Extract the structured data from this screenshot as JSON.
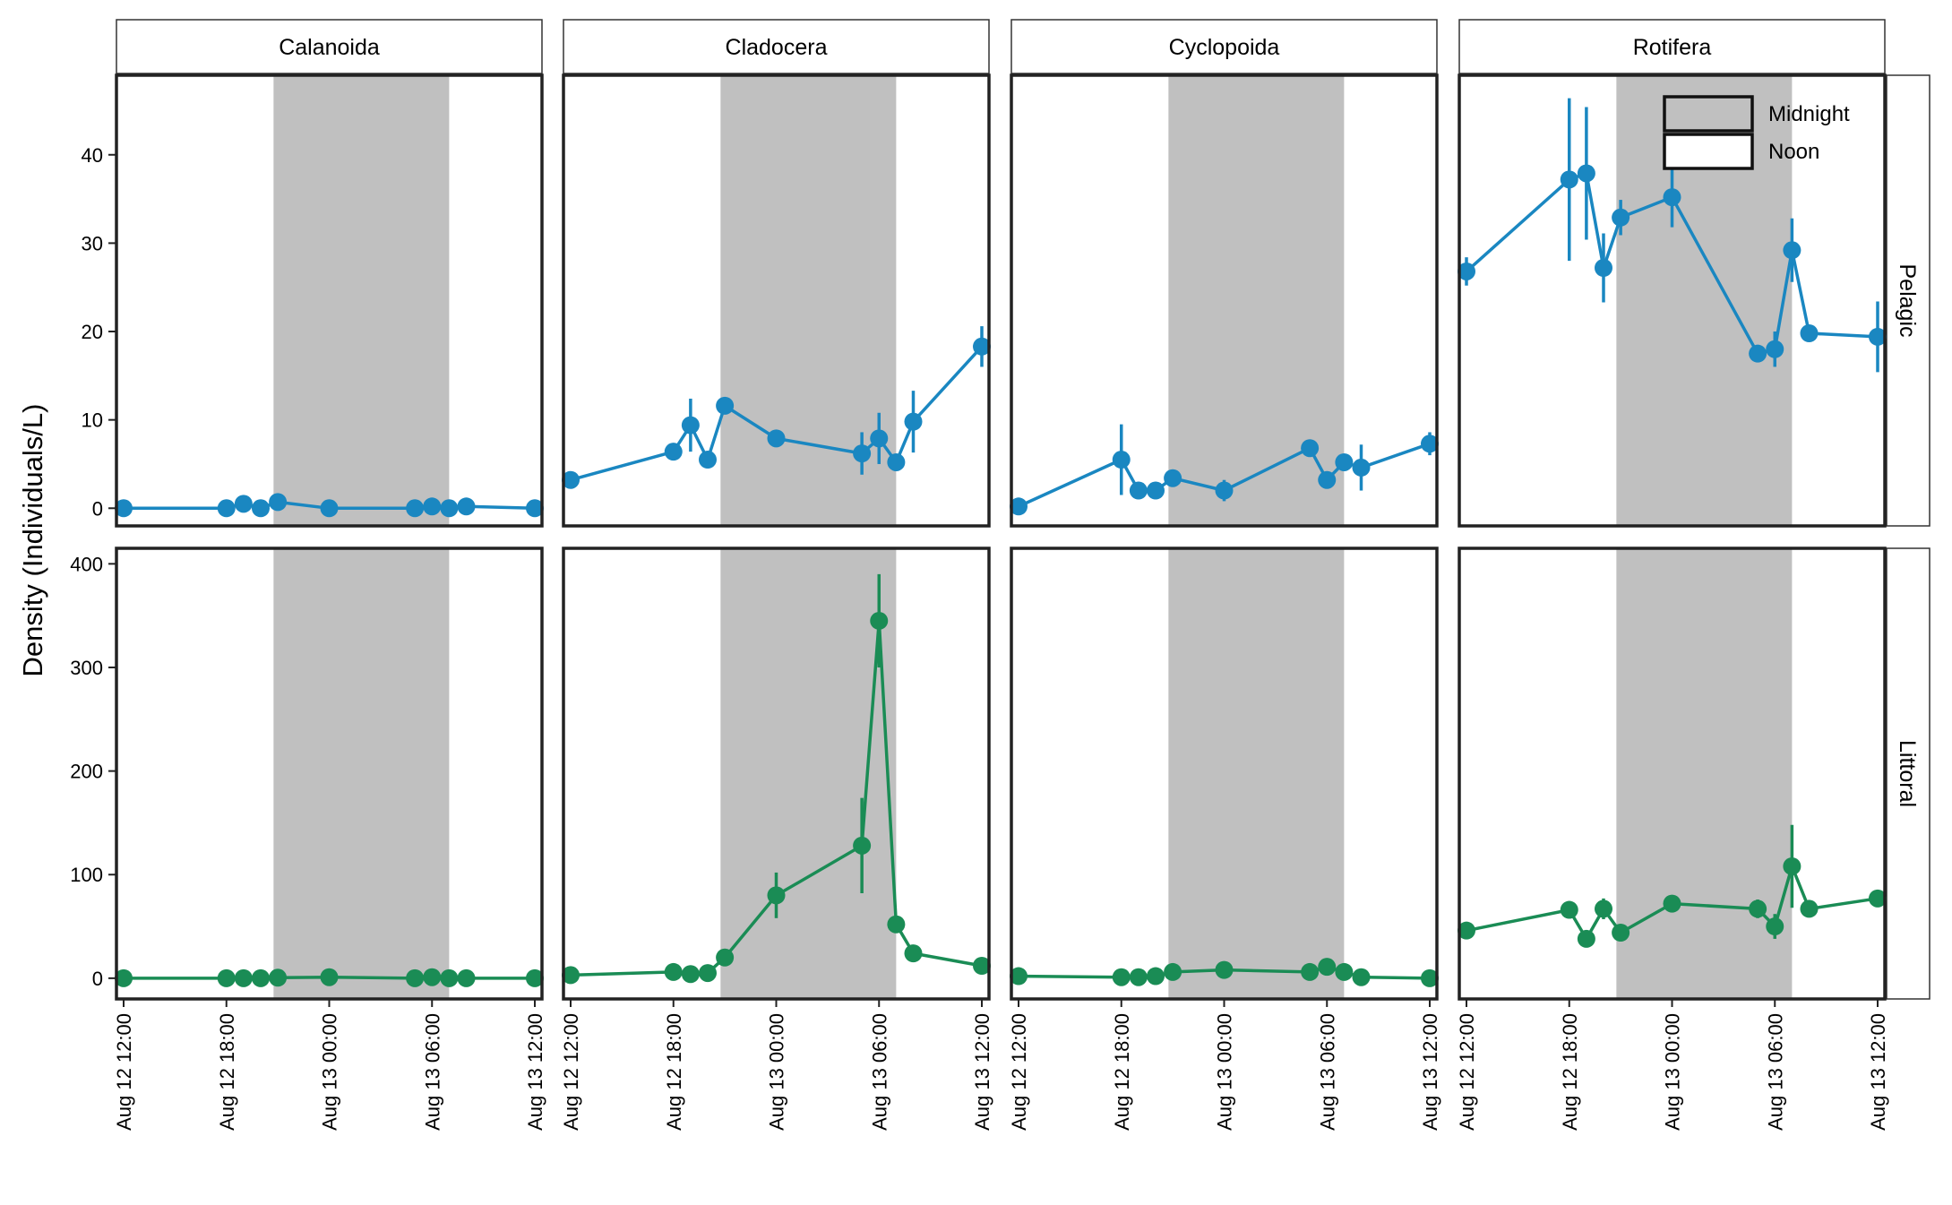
{
  "chart_data": {
    "type": "line",
    "ylabel": "Density (Individuals/L)",
    "xlabel": "",
    "x_tick_labels": [
      "Aug 12 12:00",
      "Aug 12 18:00",
      "Aug 13 00:00",
      "Aug 13 06:00",
      "Aug 13 12:00"
    ],
    "x_range_hours": [
      0,
      24
    ],
    "night_shading_hours": [
      8.75,
      19
    ],
    "legend": {
      "placement": "top-right",
      "items": [
        {
          "label": "Midnight",
          "fill": "#c0c0c0"
        },
        {
          "label": "Noon",
          "fill": "#ffffff"
        }
      ]
    },
    "facet_columns": [
      "Calanoida",
      "Cladocera",
      "Cyclopoida",
      "Rotifera"
    ],
    "facet_rows": [
      {
        "label": "Pelagic",
        "color": "#1a87c1",
        "ylim": [
          -2,
          49
        ],
        "yticks": [
          0,
          10,
          20,
          30,
          40
        ]
      },
      {
        "label": "Littoral",
        "color": "#1a8c55",
        "ylim": [
          -20,
          415
        ],
        "yticks": [
          0,
          100,
          200,
          300,
          400
        ]
      }
    ],
    "panels": [
      {
        "row": "Pelagic",
        "col": "Calanoida",
        "points": [
          {
            "t": 0,
            "y": 0,
            "lo": 0,
            "hi": 0
          },
          {
            "t": 6,
            "y": 0,
            "lo": 0,
            "hi": 0
          },
          {
            "t": 7,
            "y": 0.5,
            "lo": 0.3,
            "hi": 0.7
          },
          {
            "t": 8,
            "y": 0,
            "lo": 0,
            "hi": 0
          },
          {
            "t": 9,
            "y": 0.7,
            "lo": 0.5,
            "hi": 0.9
          },
          {
            "t": 12,
            "y": 0,
            "lo": 0,
            "hi": 0
          },
          {
            "t": 17,
            "y": 0,
            "lo": 0,
            "hi": 0
          },
          {
            "t": 18,
            "y": 0.2,
            "lo": 0,
            "hi": 0.4
          },
          {
            "t": 19,
            "y": 0,
            "lo": 0,
            "hi": 0
          },
          {
            "t": 20,
            "y": 0.2,
            "lo": 0,
            "hi": 0.4
          },
          {
            "t": 24,
            "y": 0,
            "lo": 0,
            "hi": 0
          }
        ]
      },
      {
        "row": "Pelagic",
        "col": "Cladocera",
        "points": [
          {
            "t": 0,
            "y": 3.2,
            "lo": 2.9,
            "hi": 3.5
          },
          {
            "t": 6,
            "y": 6.4,
            "lo": 5.9,
            "hi": 6.9
          },
          {
            "t": 7,
            "y": 9.4,
            "lo": 6.4,
            "hi": 12.4
          },
          {
            "t": 8,
            "y": 5.5,
            "lo": 5.1,
            "hi": 5.9
          },
          {
            "t": 9,
            "y": 11.6,
            "lo": 11.1,
            "hi": 12.1
          },
          {
            "t": 12,
            "y": 7.9,
            "lo": 7.4,
            "hi": 8.4
          },
          {
            "t": 17,
            "y": 6.2,
            "lo": 3.8,
            "hi": 8.6
          },
          {
            "t": 18,
            "y": 7.9,
            "lo": 5.0,
            "hi": 10.8
          },
          {
            "t": 19,
            "y": 5.2,
            "lo": 4.7,
            "hi": 5.7
          },
          {
            "t": 20,
            "y": 9.8,
            "lo": 6.3,
            "hi": 13.3
          },
          {
            "t": 24,
            "y": 18.3,
            "lo": 16.0,
            "hi": 20.6
          }
        ]
      },
      {
        "row": "Pelagic",
        "col": "Cyclopoida",
        "points": [
          {
            "t": 0,
            "y": 0.2,
            "lo": 0,
            "hi": 0.5
          },
          {
            "t": 6,
            "y": 5.5,
            "lo": 1.5,
            "hi": 9.5
          },
          {
            "t": 7,
            "y": 2.0,
            "lo": 1.6,
            "hi": 2.4
          },
          {
            "t": 8,
            "y": 2.0,
            "lo": 1.6,
            "hi": 2.4
          },
          {
            "t": 9,
            "y": 3.4,
            "lo": 3.0,
            "hi": 3.8
          },
          {
            "t": 12,
            "y": 2.0,
            "lo": 0.8,
            "hi": 3.2
          },
          {
            "t": 17,
            "y": 6.8,
            "lo": 6.3,
            "hi": 7.3
          },
          {
            "t": 18,
            "y": 3.2,
            "lo": 2.8,
            "hi": 3.6
          },
          {
            "t": 19,
            "y": 5.2,
            "lo": 4.8,
            "hi": 5.6
          },
          {
            "t": 20,
            "y": 4.6,
            "lo": 2.0,
            "hi": 7.2
          },
          {
            "t": 24,
            "y": 7.3,
            "lo": 6.0,
            "hi": 8.6
          }
        ]
      },
      {
        "row": "Pelagic",
        "col": "Rotifera",
        "points": [
          {
            "t": 0,
            "y": 26.8,
            "lo": 25.2,
            "hi": 28.4
          },
          {
            "t": 6,
            "y": 37.2,
            "lo": 28.0,
            "hi": 46.4
          },
          {
            "t": 7,
            "y": 37.9,
            "lo": 30.4,
            "hi": 45.4
          },
          {
            "t": 8,
            "y": 27.2,
            "lo": 23.3,
            "hi": 31.1
          },
          {
            "t": 9,
            "y": 32.9,
            "lo": 30.9,
            "hi": 34.9
          },
          {
            "t": 12,
            "y": 35.2,
            "lo": 31.8,
            "hi": 38.6
          },
          {
            "t": 17,
            "y": 17.5,
            "lo": 16.7,
            "hi": 18.3
          },
          {
            "t": 18,
            "y": 18.0,
            "lo": 16.0,
            "hi": 20.0
          },
          {
            "t": 19,
            "y": 29.2,
            "lo": 25.6,
            "hi": 32.8
          },
          {
            "t": 20,
            "y": 19.8,
            "lo": 19.3,
            "hi": 20.3
          },
          {
            "t": 24,
            "y": 19.4,
            "lo": 15.4,
            "hi": 23.4
          }
        ]
      },
      {
        "row": "Littoral",
        "col": "Calanoida",
        "points": [
          {
            "t": 0,
            "y": 0,
            "lo": 0,
            "hi": 0
          },
          {
            "t": 6,
            "y": 0,
            "lo": 0,
            "hi": 0
          },
          {
            "t": 7,
            "y": 0,
            "lo": 0,
            "hi": 0
          },
          {
            "t": 8,
            "y": 0,
            "lo": 0,
            "hi": 0
          },
          {
            "t": 9,
            "y": 0.5,
            "lo": 0,
            "hi": 1
          },
          {
            "t": 12,
            "y": 1.0,
            "lo": 0,
            "hi": 2
          },
          {
            "t": 17,
            "y": 0,
            "lo": 0,
            "hi": 0
          },
          {
            "t": 18,
            "y": 1.0,
            "lo": 0,
            "hi": 2
          },
          {
            "t": 19,
            "y": 0,
            "lo": 0,
            "hi": 0
          },
          {
            "t": 20,
            "y": 0,
            "lo": 0,
            "hi": 0
          },
          {
            "t": 24,
            "y": 0,
            "lo": 0,
            "hi": 0
          }
        ]
      },
      {
        "row": "Littoral",
        "col": "Cladocera",
        "points": [
          {
            "t": 0,
            "y": 3,
            "lo": 2,
            "hi": 4
          },
          {
            "t": 6,
            "y": 6,
            "lo": 5,
            "hi": 7
          },
          {
            "t": 7,
            "y": 4,
            "lo": 3,
            "hi": 5
          },
          {
            "t": 8,
            "y": 5,
            "lo": 4,
            "hi": 6
          },
          {
            "t": 9,
            "y": 20,
            "lo": 18,
            "hi": 22
          },
          {
            "t": 12,
            "y": 80,
            "lo": 58,
            "hi": 102
          },
          {
            "t": 17,
            "y": 128,
            "lo": 82,
            "hi": 174
          },
          {
            "t": 18,
            "y": 345,
            "lo": 300,
            "hi": 390
          },
          {
            "t": 19,
            "y": 52,
            "lo": 48,
            "hi": 56
          },
          {
            "t": 20,
            "y": 24,
            "lo": 22,
            "hi": 26
          },
          {
            "t": 24,
            "y": 12,
            "lo": 10,
            "hi": 14
          }
        ]
      },
      {
        "row": "Littoral",
        "col": "Cyclopoida",
        "points": [
          {
            "t": 0,
            "y": 2,
            "lo": 1,
            "hi": 3
          },
          {
            "t": 6,
            "y": 1,
            "lo": 0,
            "hi": 2
          },
          {
            "t": 7,
            "y": 1,
            "lo": 0,
            "hi": 2
          },
          {
            "t": 8,
            "y": 2,
            "lo": 1,
            "hi": 3
          },
          {
            "t": 9,
            "y": 6,
            "lo": 5,
            "hi": 7
          },
          {
            "t": 12,
            "y": 8,
            "lo": 7,
            "hi": 9
          },
          {
            "t": 17,
            "y": 6,
            "lo": 5,
            "hi": 7
          },
          {
            "t": 18,
            "y": 11,
            "lo": 9,
            "hi": 13
          },
          {
            "t": 19,
            "y": 6,
            "lo": 5,
            "hi": 7
          },
          {
            "t": 20,
            "y": 1,
            "lo": 0,
            "hi": 2
          },
          {
            "t": 24,
            "y": 0,
            "lo": 0,
            "hi": 1
          }
        ]
      },
      {
        "row": "Littoral",
        "col": "Rotifera",
        "points": [
          {
            "t": 0,
            "y": 46,
            "lo": 43,
            "hi": 49
          },
          {
            "t": 6,
            "y": 66,
            "lo": 63,
            "hi": 69
          },
          {
            "t": 7,
            "y": 38,
            "lo": 35,
            "hi": 41
          },
          {
            "t": 8,
            "y": 67,
            "lo": 57,
            "hi": 77
          },
          {
            "t": 9,
            "y": 44,
            "lo": 42,
            "hi": 46
          },
          {
            "t": 12,
            "y": 72,
            "lo": 69,
            "hi": 75
          },
          {
            "t": 17,
            "y": 67,
            "lo": 58,
            "hi": 76
          },
          {
            "t": 18,
            "y": 50,
            "lo": 38,
            "hi": 62
          },
          {
            "t": 19,
            "y": 108,
            "lo": 68,
            "hi": 148
          },
          {
            "t": 20,
            "y": 67,
            "lo": 64,
            "hi": 70
          },
          {
            "t": 24,
            "y": 77,
            "lo": 74,
            "hi": 80
          }
        ]
      }
    ]
  }
}
